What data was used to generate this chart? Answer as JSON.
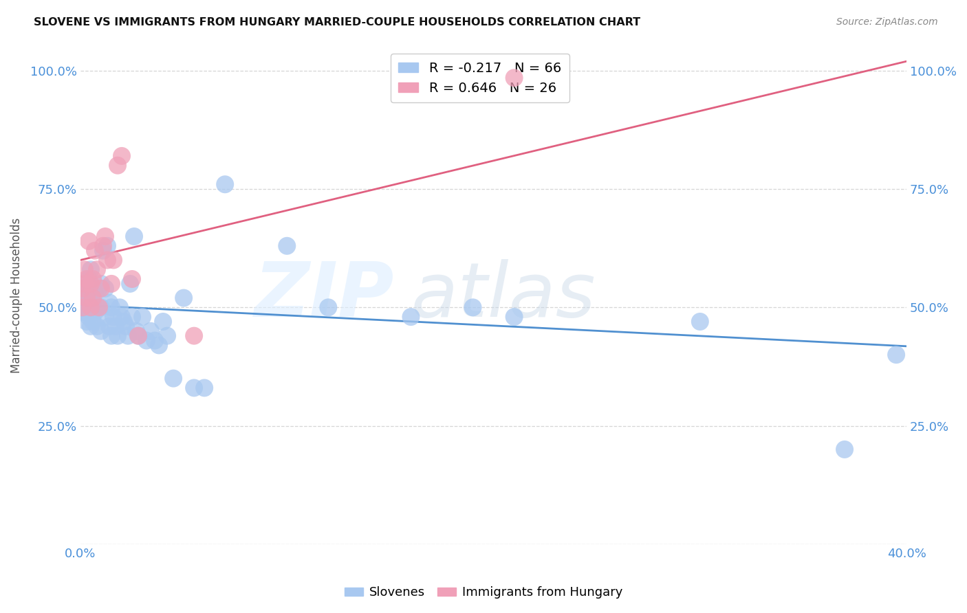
{
  "title": "SLOVENE VS IMMIGRANTS FROM HUNGARY MARRIED-COUPLE HOUSEHOLDS CORRELATION CHART",
  "source": "Source: ZipAtlas.com",
  "ylabel": "Married-couple Households",
  "xlim": [
    0.0,
    0.4
  ],
  "ylim": [
    0.0,
    1.05
  ],
  "legend_blue_R": "R = -0.217",
  "legend_blue_N": "N = 66",
  "legend_pink_R": "R = 0.646",
  "legend_pink_N": "N = 26",
  "blue_color": "#A8C8F0",
  "pink_color": "#F0A0B8",
  "blue_line_color": "#5090D0",
  "pink_line_color": "#E06080",
  "blue_line_x0": 0.0,
  "blue_line_y0": 0.505,
  "blue_line_x1": 0.4,
  "blue_line_y1": 0.418,
  "pink_line_x0": 0.0,
  "pink_line_y0": 0.6,
  "pink_line_x1": 0.4,
  "pink_line_y1": 1.02,
  "slovenes_x": [
    0.001,
    0.001,
    0.002,
    0.002,
    0.002,
    0.003,
    0.003,
    0.003,
    0.004,
    0.004,
    0.004,
    0.005,
    0.005,
    0.005,
    0.005,
    0.006,
    0.006,
    0.007,
    0.007,
    0.008,
    0.008,
    0.009,
    0.01,
    0.01,
    0.01,
    0.011,
    0.012,
    0.012,
    0.013,
    0.014,
    0.014,
    0.015,
    0.015,
    0.016,
    0.017,
    0.018,
    0.019,
    0.02,
    0.021,
    0.022,
    0.023,
    0.024,
    0.025,
    0.026,
    0.027,
    0.028,
    0.03,
    0.032,
    0.034,
    0.036,
    0.038,
    0.04,
    0.042,
    0.045,
    0.05,
    0.055,
    0.06,
    0.07,
    0.1,
    0.12,
    0.16,
    0.19,
    0.21,
    0.3,
    0.37,
    0.395
  ],
  "slovenes_y": [
    0.5,
    0.52,
    0.49,
    0.51,
    0.54,
    0.47,
    0.5,
    0.53,
    0.48,
    0.52,
    0.56,
    0.46,
    0.5,
    0.54,
    0.58,
    0.47,
    0.51,
    0.49,
    0.53,
    0.46,
    0.5,
    0.54,
    0.45,
    0.5,
    0.55,
    0.62,
    0.48,
    0.54,
    0.63,
    0.46,
    0.51,
    0.5,
    0.44,
    0.48,
    0.46,
    0.44,
    0.5,
    0.48,
    0.47,
    0.46,
    0.44,
    0.55,
    0.48,
    0.65,
    0.45,
    0.44,
    0.48,
    0.43,
    0.45,
    0.43,
    0.42,
    0.47,
    0.44,
    0.35,
    0.52,
    0.33,
    0.33,
    0.76,
    0.63,
    0.5,
    0.48,
    0.5,
    0.48,
    0.47,
    0.2,
    0.4
  ],
  "hungary_x": [
    0.001,
    0.001,
    0.002,
    0.002,
    0.003,
    0.003,
    0.004,
    0.005,
    0.005,
    0.006,
    0.006,
    0.007,
    0.008,
    0.009,
    0.01,
    0.011,
    0.012,
    0.013,
    0.015,
    0.016,
    0.018,
    0.02,
    0.025,
    0.028,
    0.055,
    0.21
  ],
  "hungary_y": [
    0.5,
    0.54,
    0.55,
    0.58,
    0.52,
    0.56,
    0.64,
    0.5,
    0.55,
    0.52,
    0.56,
    0.62,
    0.58,
    0.5,
    0.54,
    0.63,
    0.65,
    0.6,
    0.55,
    0.6,
    0.8,
    0.82,
    0.56,
    0.44,
    0.44,
    0.985
  ]
}
